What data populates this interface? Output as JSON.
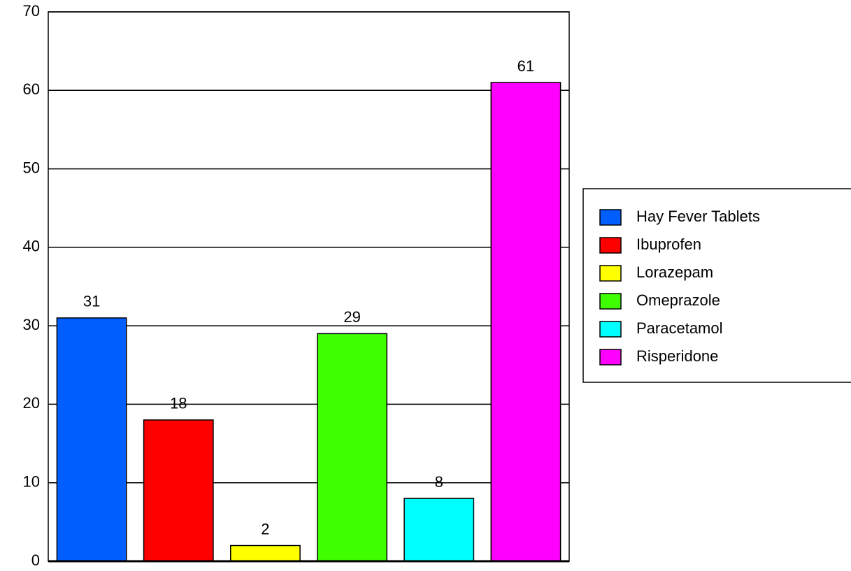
{
  "chart_data": {
    "type": "bar",
    "categories": [
      "Hay Fever Tablets",
      "Ibuprofen",
      "Lorazepam",
      "Omeprazole",
      "Paracetamol",
      "Risperidone"
    ],
    "values": [
      31,
      18,
      2,
      29,
      8,
      61
    ],
    "colors": [
      "#005eff",
      "#ff0000",
      "#ffff00",
      "#40ff00",
      "#00ffff",
      "#ff00ff"
    ],
    "ylim": [
      0,
      70
    ],
    "yticks": [
      0,
      10,
      20,
      30,
      40,
      50,
      60,
      70
    ],
    "grid": true,
    "legend": "right"
  }
}
